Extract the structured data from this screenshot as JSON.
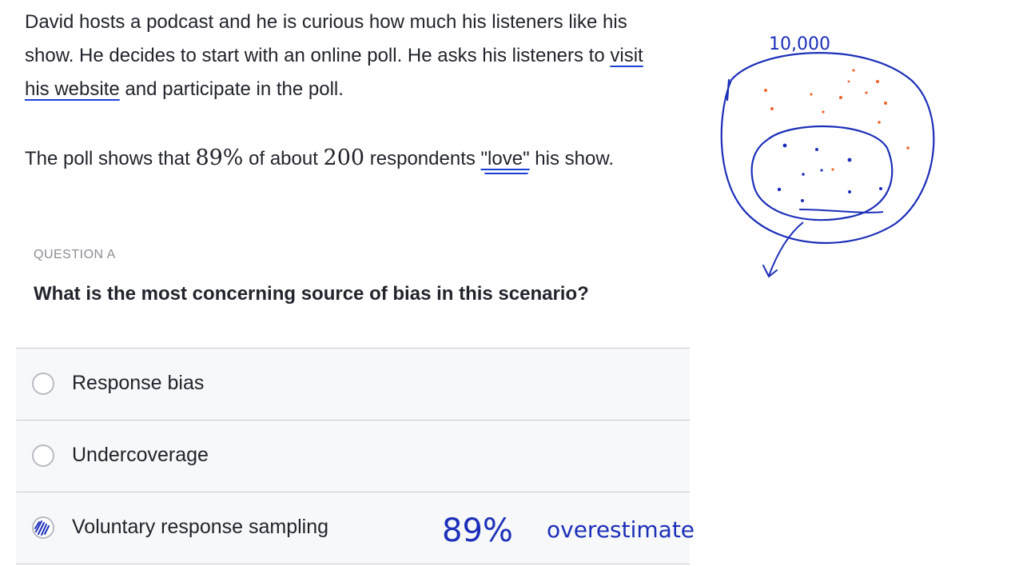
{
  "passage": {
    "p1_before_link": "David hosts a podcast and he is curious how much his listeners like his show. He decides to start with an online poll. He asks his listeners to ",
    "p1_link": "visit his website",
    "p1_after_link": " and participate in the poll.",
    "p2_before_pct": "The poll shows that ",
    "p2_pct": "89%",
    "p2_middle": " of about ",
    "p2_count": "200",
    "p2_before_love": " respondents ",
    "p2_love": "\"love\"",
    "p2_after_love": " his show."
  },
  "question": {
    "label": "QUESTION A",
    "text": "What is the most concerning source of bias in this scenario?"
  },
  "choices": [
    {
      "label": "Response bias",
      "selected": false
    },
    {
      "label": "Undercoverage",
      "selected": false
    },
    {
      "label": "Voluntary response sampling",
      "selected": true
    }
  ],
  "annotations": {
    "population": "10,000",
    "percent": "89%",
    "note": "overestimate",
    "ink_blue": "#1c2fb8",
    "ink_orange": "#f0642a"
  }
}
